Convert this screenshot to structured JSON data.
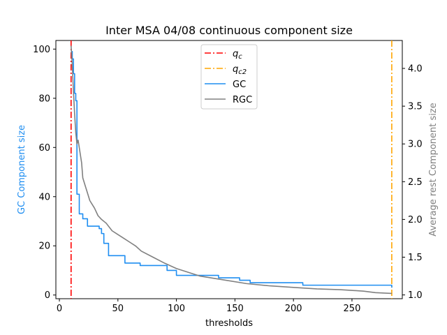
{
  "chart_data": {
    "type": "line",
    "title": "Inter MSA 04/08 continuous component size",
    "xlabel": "thresholds",
    "ylabel_left": "GC Component size",
    "ylabel_right": "Average rest Component size",
    "xlim": [
      -3,
      293
    ],
    "ylim_left": [
      -1.5,
      103.5
    ],
    "ylim_right": [
      0.95,
      4.37
    ],
    "x_ticks": [
      0,
      50,
      100,
      150,
      200,
      250
    ],
    "y_left_ticks": [
      0,
      20,
      40,
      60,
      80,
      100
    ],
    "y_right_ticks": [
      1.0,
      1.5,
      2.0,
      2.5,
      3.0,
      3.5,
      4.0
    ],
    "y_right_tick_labels": [
      "1.0",
      "1.5",
      "2.0",
      "2.5",
      "3.0",
      "3.5",
      "4.0"
    ],
    "grid": false,
    "legend_position": "top-center",
    "vlines": [
      {
        "label": "$q_c$",
        "label_main": "q",
        "label_sub": "c",
        "x": 10,
        "color": "#ff0000",
        "style": "dashdot"
      },
      {
        "label": "$q_{c2}$",
        "label_main": "q",
        "label_sub": "c2",
        "x": 284,
        "color": "#ffa500",
        "style": "dashdot"
      }
    ],
    "series": [
      {
        "name": "GC",
        "axis": "left",
        "color": "#1f8ef1",
        "step": true,
        "points": [
          [
            10,
            99
          ],
          [
            11,
            96
          ],
          [
            12,
            90
          ],
          [
            13,
            82
          ],
          [
            14,
            79
          ],
          [
            15,
            41
          ],
          [
            17,
            33
          ],
          [
            20,
            31
          ],
          [
            24,
            28
          ],
          [
            34,
            27
          ],
          [
            36,
            25
          ],
          [
            38,
            21
          ],
          [
            42,
            16
          ],
          [
            56,
            13
          ],
          [
            69,
            12
          ],
          [
            92,
            10
          ],
          [
            100,
            8
          ],
          [
            136,
            7
          ],
          [
            154,
            6
          ],
          [
            163,
            5
          ],
          [
            208,
            4
          ],
          [
            284,
            3
          ]
        ]
      },
      {
        "name": "RGC",
        "axis": "right",
        "color": "#808080",
        "step": false,
        "points": [
          [
            10,
            4.3
          ],
          [
            11,
            4.05
          ],
          [
            12,
            3.7
          ],
          [
            13,
            3.4
          ],
          [
            14,
            3.15
          ],
          [
            15,
            3.0
          ],
          [
            16,
            3.05
          ],
          [
            17,
            2.95
          ],
          [
            18,
            2.85
          ],
          [
            19,
            2.75
          ],
          [
            20,
            2.55
          ],
          [
            22,
            2.45
          ],
          [
            24,
            2.35
          ],
          [
            26,
            2.25
          ],
          [
            28,
            2.2
          ],
          [
            30,
            2.15
          ],
          [
            33,
            2.05
          ],
          [
            36,
            2.0
          ],
          [
            40,
            1.95
          ],
          [
            45,
            1.85
          ],
          [
            50,
            1.8
          ],
          [
            55,
            1.75
          ],
          [
            60,
            1.7
          ],
          [
            65,
            1.65
          ],
          [
            70,
            1.58
          ],
          [
            80,
            1.5
          ],
          [
            90,
            1.42
          ],
          [
            100,
            1.35
          ],
          [
            110,
            1.3
          ],
          [
            120,
            1.25
          ],
          [
            140,
            1.2
          ],
          [
            160,
            1.15
          ],
          [
            180,
            1.12
          ],
          [
            200,
            1.1
          ],
          [
            220,
            1.08
          ],
          [
            240,
            1.07
          ],
          [
            260,
            1.05
          ],
          [
            270,
            1.03
          ],
          [
            284,
            1.02
          ]
        ]
      }
    ]
  }
}
